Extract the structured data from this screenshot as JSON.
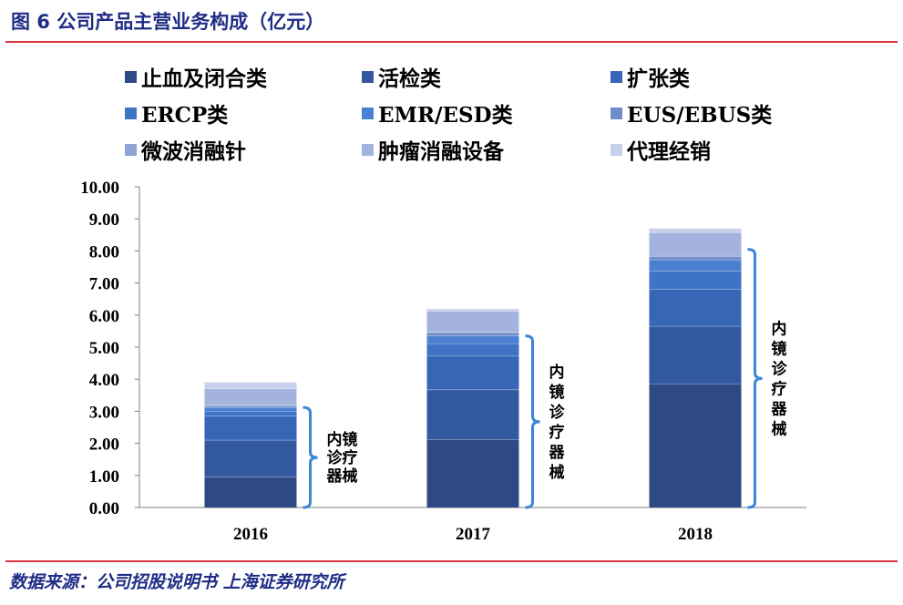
{
  "figure": {
    "title": "图 6 公司产品主营业务构成（亿元）",
    "source": "数据来源：公司招股说明书 上海证券研究所"
  },
  "chart_data": {
    "type": "bar",
    "stacked": true,
    "title": "",
    "xlabel": "",
    "ylabel": "",
    "categories": [
      "2016",
      "2017",
      "2018"
    ],
    "ylim": [
      0,
      10
    ],
    "ytick_labels": [
      "0.00",
      "1.00",
      "2.00",
      "3.00",
      "4.00",
      "5.00",
      "6.00",
      "7.00",
      "8.00",
      "9.00",
      "10.00"
    ],
    "grid": false,
    "legend_position": "top",
    "series": [
      {
        "name": "止血及闭合类",
        "color": "#2d4a84",
        "values": [
          0.95,
          2.12,
          3.85
        ]
      },
      {
        "name": "活检类",
        "color": "#3259a0",
        "values": [
          1.15,
          1.55,
          1.8
        ]
      },
      {
        "name": "扩张类",
        "color": "#3766b6",
        "values": [
          0.75,
          1.05,
          1.15
        ]
      },
      {
        "name": "ERCP类",
        "color": "#3f73c6",
        "values": [
          0.15,
          0.38,
          0.57
        ]
      },
      {
        "name": "EMR/ESD类",
        "color": "#4a80d2",
        "values": [
          0.12,
          0.25,
          0.35
        ]
      },
      {
        "name": "EUS/EBUS类",
        "color": "#6f8dc9",
        "values": [
          0.05,
          0.1,
          0.1
        ]
      },
      {
        "name": "微波消融针",
        "color": "#8fa5d6",
        "values": [
          0.03,
          0.02,
          0.05
        ]
      },
      {
        "name": "肿瘤消融设备",
        "color": "#a3b3dd",
        "values": [
          0.5,
          0.65,
          0.7
        ]
      },
      {
        "name": "代理经销",
        "color": "#c8d1ec",
        "values": [
          0.2,
          0.07,
          0.13
        ]
      }
    ],
    "annotations": [
      {
        "category": "2016",
        "label": "内镜诊疗器械",
        "from": 0,
        "to": 3.12
      },
      {
        "category": "2017",
        "label": "内镜诊疗器械",
        "from": 0,
        "to": 5.35
      },
      {
        "category": "2018",
        "label": "内镜诊疗器械",
        "from": 0,
        "to": 8.05
      }
    ]
  }
}
